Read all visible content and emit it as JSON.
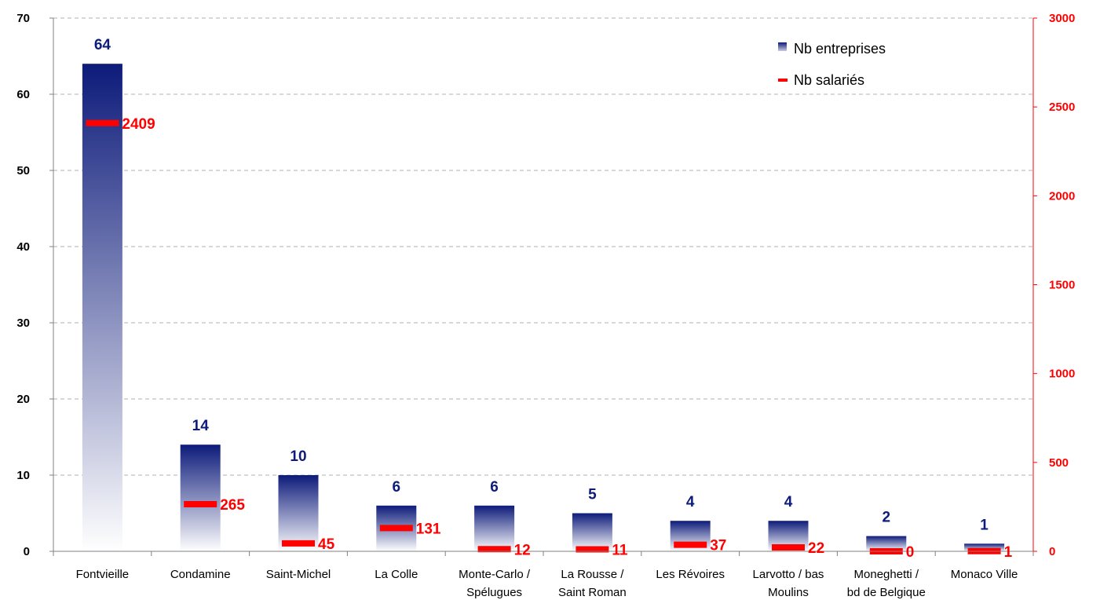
{
  "chart_data": {
    "type": "bar",
    "categories": [
      [
        "Fontvieille"
      ],
      [
        "Condamine"
      ],
      [
        "Saint-Michel"
      ],
      [
        "La Colle"
      ],
      [
        "Monte-Carlo /",
        "Spélugues"
      ],
      [
        "La Rousse /",
        "Saint Roman"
      ],
      [
        "Les Révoires"
      ],
      [
        "Larvotto / bas",
        "Moulins"
      ],
      [
        "Moneghetti /",
        "bd de Belgique"
      ],
      [
        "Monaco Ville"
      ]
    ],
    "series": [
      {
        "name": "Nb entreprises",
        "axis": "left",
        "mark": "bar",
        "values": [
          64,
          14,
          10,
          6,
          6,
          5,
          4,
          4,
          2,
          1
        ]
      },
      {
        "name": "Nb salariés",
        "axis": "right",
        "mark": "dash",
        "values": [
          2409,
          265,
          45,
          131,
          12,
          11,
          37,
          22,
          0,
          1
        ]
      }
    ],
    "ylim_left": [
      0,
      70
    ],
    "yticks_left": [
      "0",
      "10",
      "20",
      "30",
      "40",
      "50",
      "60",
      "70"
    ],
    "ylim_right": [
      0,
      3000
    ],
    "yticks_right": [
      "0",
      "500",
      "1000",
      "1500",
      "2000",
      "2500",
      "3000"
    ],
    "grid": true,
    "legend_placement": "top-right",
    "colors": {
      "bar_top": "#0d1b7a",
      "bar_bottom": "#ffffff",
      "dash": "#ff0000",
      "bar_label": "#0d1b7a",
      "dash_label": "#ff0000",
      "right_axis": "#ff0000",
      "grid": "#b0b0b0"
    }
  }
}
